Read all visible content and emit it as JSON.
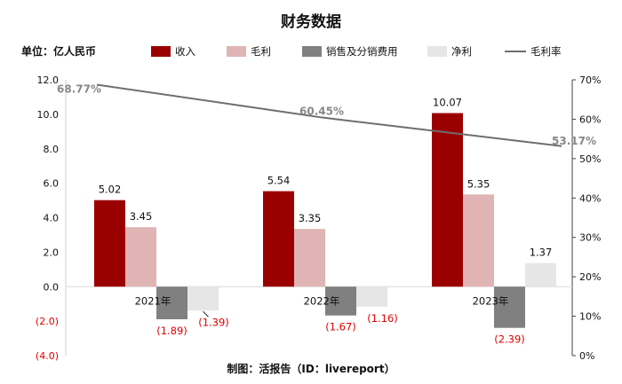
{
  "chart_data": {
    "type": "bar",
    "title": "财务数据",
    "unit_label": "单位：亿人民币",
    "footer": "制图：活报告（ID：livereport）",
    "categories": [
      "2021年",
      "2022年",
      "2023年"
    ],
    "series": [
      {
        "name": "收入",
        "color": "#9b0000",
        "values": [
          5.02,
          5.54,
          10.07
        ],
        "labels": [
          "5.02",
          "5.54",
          "10.07"
        ]
      },
      {
        "name": "毛利",
        "color": "#e0b4b4",
        "values": [
          3.45,
          3.35,
          5.35
        ],
        "labels": [
          "3.45",
          "3.35",
          "5.35"
        ]
      },
      {
        "name": "销售及分销费用",
        "color": "#808080",
        "values": [
          -1.89,
          -1.67,
          -2.39
        ],
        "labels": [
          "(1.89)",
          "(1.67)",
          "(2.39)"
        ]
      },
      {
        "name": "净利",
        "color": "#e6e6e6",
        "values": [
          -1.39,
          -1.16,
          1.37
        ],
        "labels": [
          "(1.39)",
          "(1.16)",
          "1.37"
        ]
      }
    ],
    "line_series": {
      "name": "毛利率",
      "color": "#6e6e6e",
      "values": [
        68.77,
        60.45,
        53.17
      ],
      "labels": [
        "68.77%",
        "60.45%",
        "53.17%"
      ]
    },
    "y_left": {
      "min": -4,
      "max": 12,
      "ticks": [
        12,
        10,
        8,
        6,
        4,
        2,
        0,
        -2,
        -4
      ],
      "tick_labels": [
        "12.0",
        "10.0",
        "8.0",
        "6.0",
        "4.0",
        "2.0",
        "0.0",
        "(2.0)",
        "(4.0)"
      ]
    },
    "y_right": {
      "min": 0,
      "max": 70,
      "ticks": [
        70,
        60,
        50,
        40,
        30,
        20,
        10,
        0
      ],
      "tick_labels": [
        "70%",
        "60%",
        "50%",
        "40%",
        "30%",
        "20%",
        "10%",
        "0%"
      ]
    },
    "legend_position": "top",
    "grid": false
  }
}
